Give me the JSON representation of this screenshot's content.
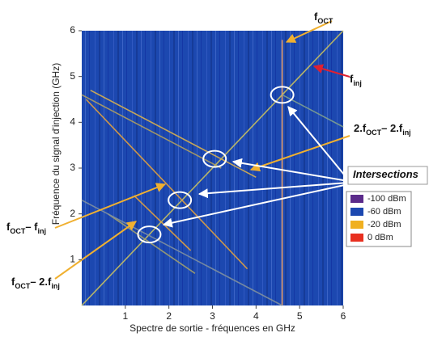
{
  "chart_data": {
    "type": "spectrogram",
    "xlabel": "Spectre de sortie - fréquences en GHz",
    "ylabel": "Fréquence du signal d'injection (GHz)",
    "xlim": [
      0,
      6
    ],
    "ylim": [
      0,
      6
    ],
    "xticks": [
      1,
      2,
      3,
      4,
      5,
      6
    ],
    "yticks": [
      1,
      2,
      3,
      4,
      5,
      6
    ],
    "background_color": "#1c48b0",
    "lines": [
      {
        "x": [
          0,
          6
        ],
        "y": [
          0,
          6
        ],
        "color": "#c8c060"
      },
      {
        "x": [
          0.1,
          3.8
        ],
        "y": [
          4.5,
          0.8
        ],
        "color": "#e0a040"
      },
      {
        "x": [
          0,
          3.2
        ],
        "y": [
          4.6,
          3.0
        ],
        "color": "#b0a060"
      },
      {
        "x": [
          0.2,
          4.0
        ],
        "y": [
          4.7,
          2.8
        ],
        "color": "#d8b050"
      },
      {
        "x": [
          0.6,
          2.6
        ],
        "y": [
          2.0,
          0.7
        ],
        "color": "#a0a070"
      },
      {
        "x": [
          1.2,
          2.5
        ],
        "y": [
          2.4,
          1.2
        ],
        "color": "#e0a040"
      },
      {
        "x": [
          4.6,
          4.6
        ],
        "y": [
          0,
          5.8
        ],
        "color": "#f0a060"
      },
      {
        "x": [
          0,
          4.6
        ],
        "y": [
          2.3,
          0
        ],
        "color": "#8090a0"
      },
      {
        "x": [
          4.6,
          6
        ],
        "y": [
          4.6,
          3.9
        ],
        "color": "#80a090"
      }
    ],
    "intersections": {
      "x": [
        1.55,
        2.25,
        3.05,
        4.6
      ],
      "y": [
        1.55,
        2.3,
        3.2,
        4.6
      ]
    },
    "legend": [
      {
        "label": "-100 dBm",
        "color": "#5a2a8a"
      },
      {
        "label": "-60 dBm",
        "color": "#1c48b0"
      },
      {
        "label": "-20 dBm",
        "color": "#f0b020"
      },
      {
        "label": "0 dBm",
        "color": "#e83020"
      }
    ],
    "annotations": [
      {
        "parts": [
          {
            "text": "f",
            "sub": false
          },
          {
            "text": "OCT",
            "sub": true
          }
        ]
      },
      {
        "parts": [
          {
            "text": "f",
            "sub": false
          },
          {
            "text": "inj",
            "sub": true
          }
        ]
      },
      {
        "parts": [
          {
            "text": "2.f",
            "sub": false
          },
          {
            "text": "OCT",
            "sub": true
          },
          {
            "text": "– 2.f",
            "sub": false
          },
          {
            "text": "inj",
            "sub": true
          }
        ]
      },
      {
        "parts": [
          {
            "text": "Intersections",
            "sub": false
          }
        ]
      },
      {
        "parts": [
          {
            "text": "f",
            "sub": false
          },
          {
            "text": "OCT",
            "sub": true
          },
          {
            "text": "– f",
            "sub": false
          },
          {
            "text": "inj",
            "sub": true
          }
        ]
      },
      {
        "parts": [
          {
            "text": "f",
            "sub": false
          },
          {
            "text": "OCT",
            "sub": true
          },
          {
            "text": "– 2.f",
            "sub": false
          },
          {
            "text": "inj",
            "sub": true
          }
        ]
      }
    ]
  }
}
